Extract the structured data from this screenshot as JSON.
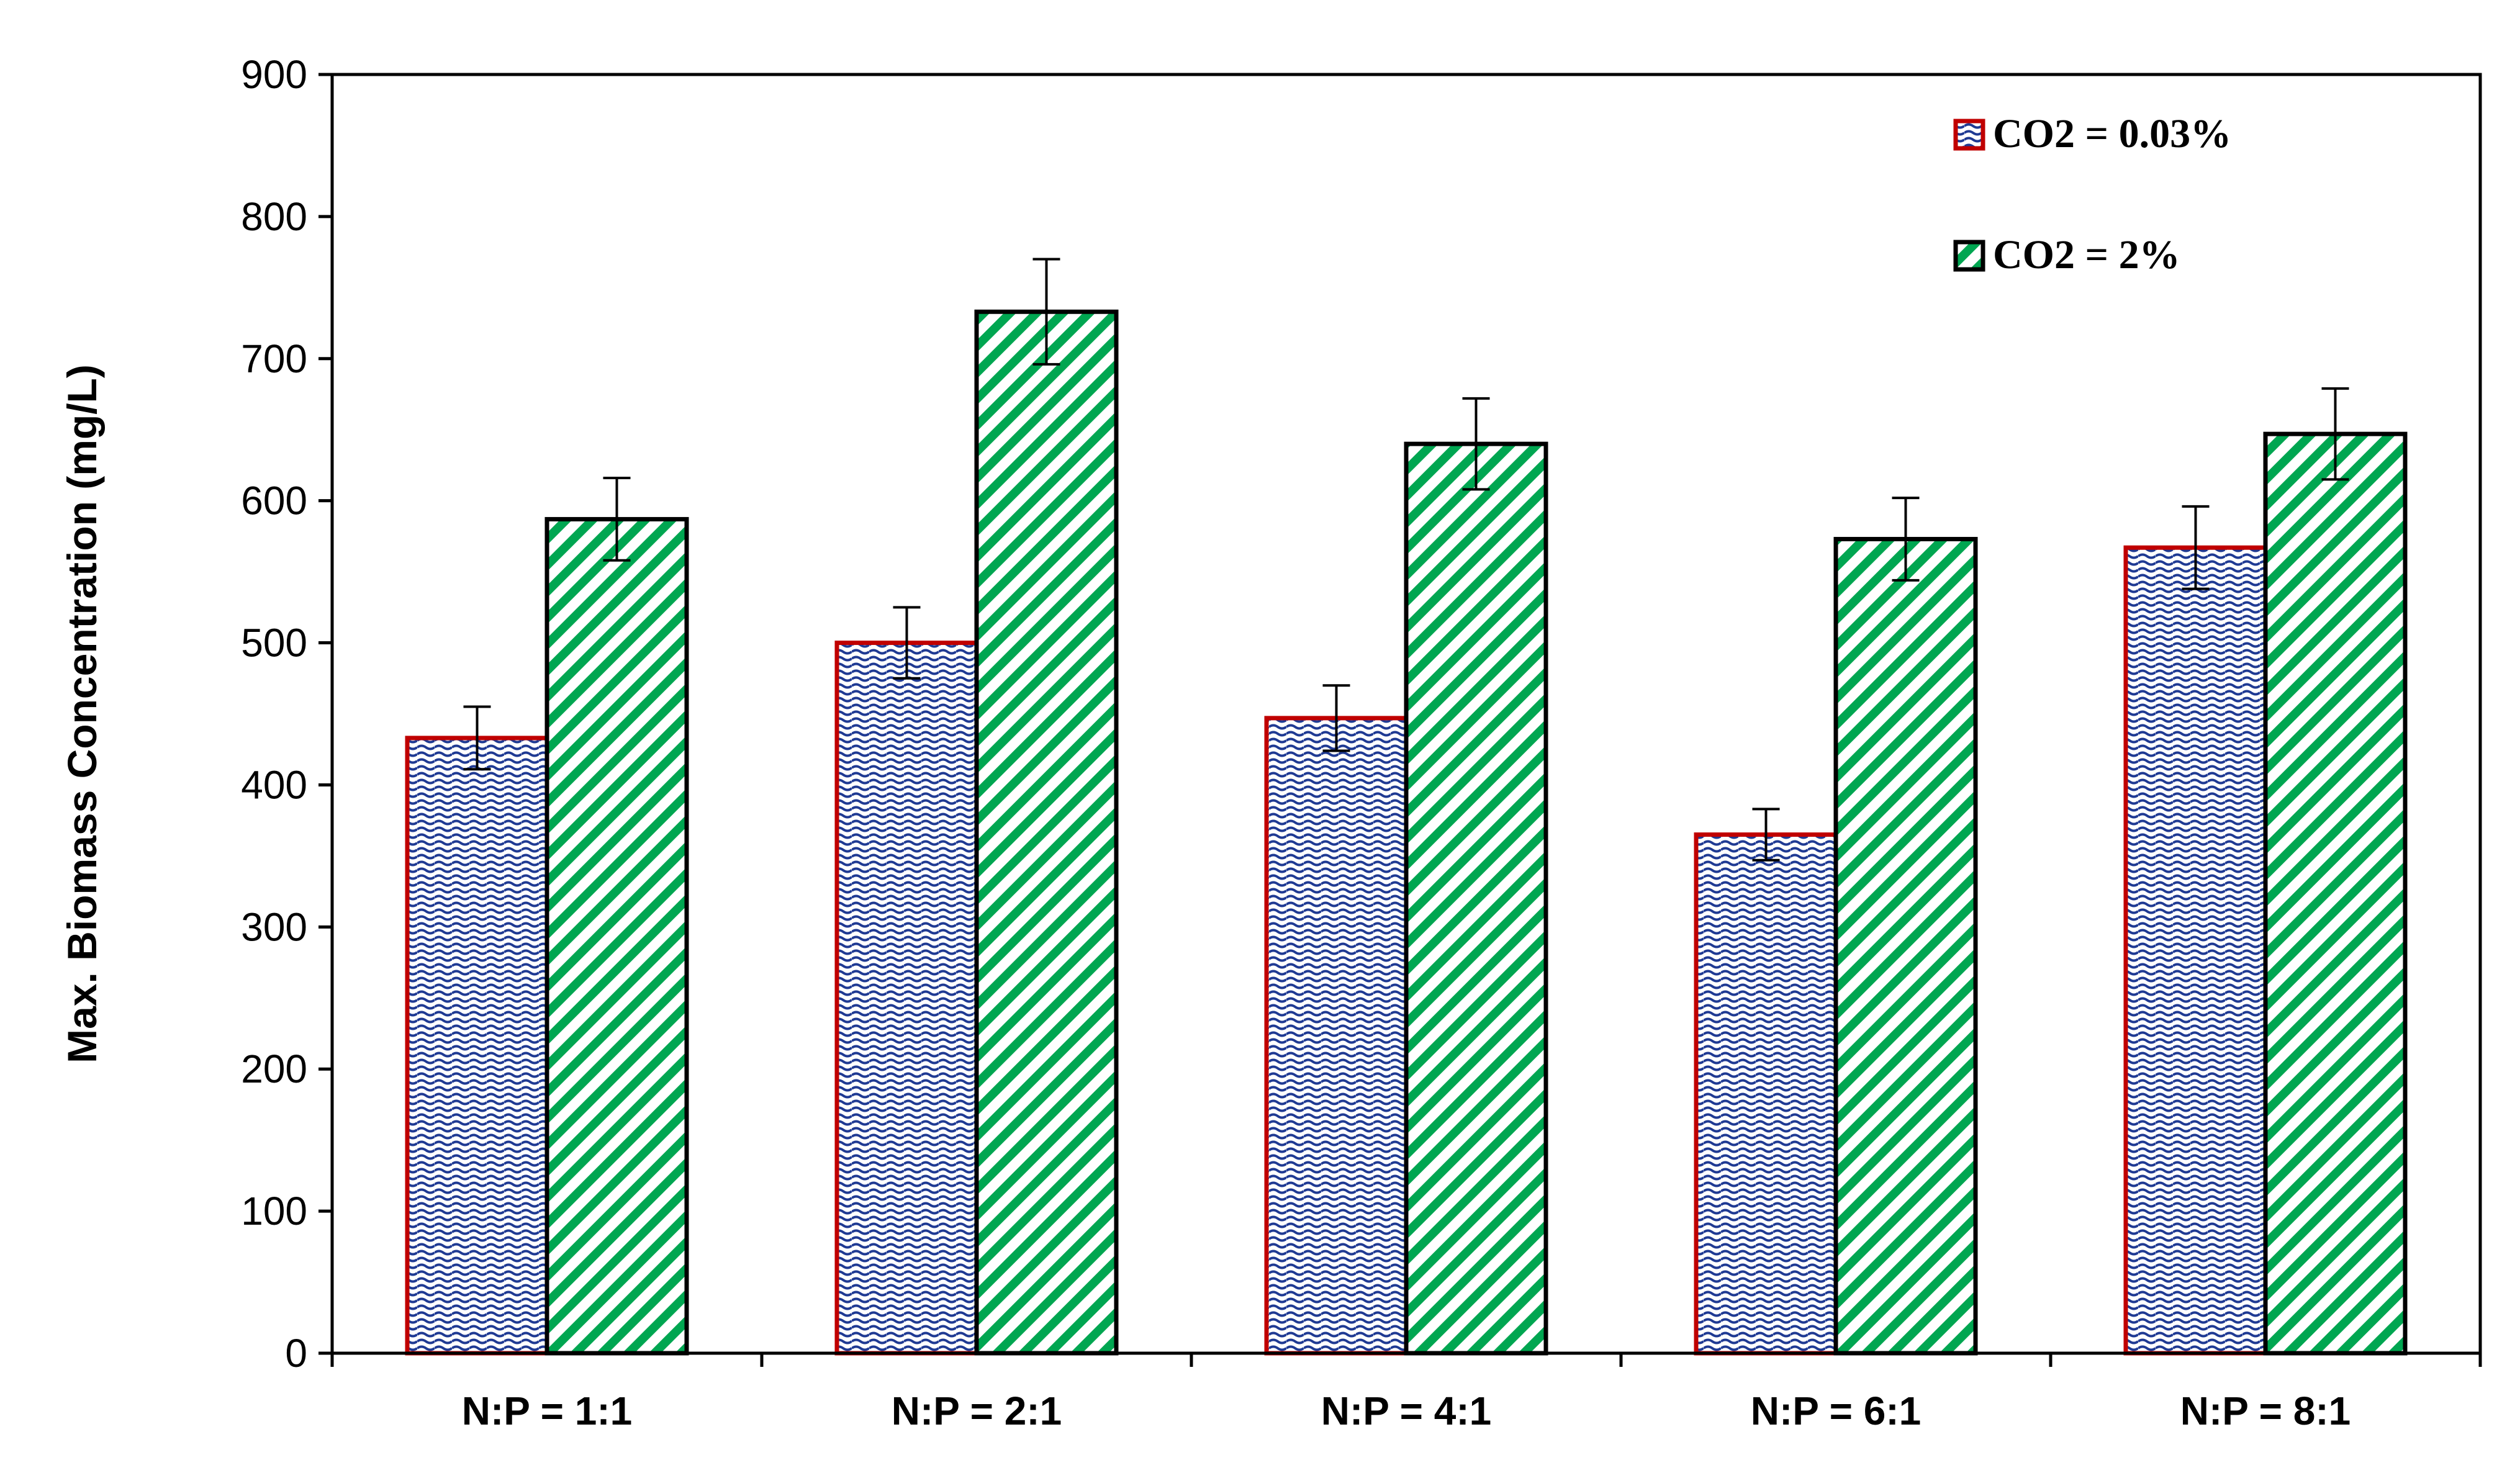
{
  "chart_data": {
    "type": "bar",
    "title": "",
    "xlabel": "",
    "ylabel": "Max. Biomass Concentration (mg/L)",
    "ylim": [
      0,
      900
    ],
    "yticks": [
      0,
      100,
      200,
      300,
      400,
      500,
      600,
      700,
      800,
      900
    ],
    "categories": [
      "N:P = 1:1",
      "N:P = 2:1",
      "N:P = 4:1",
      "N:P = 6:1",
      "N:P = 8:1"
    ],
    "series": [
      {
        "name": "CO2 = 0.03%",
        "values": [
          433,
          500,
          447,
          365,
          567
        ],
        "errors": [
          22,
          25,
          23,
          18,
          29
        ],
        "border_color": "#c00000",
        "fill_color": "#1f3a93"
      },
      {
        "name": "CO2 = 2%",
        "values": [
          587,
          733,
          640,
          573,
          647
        ],
        "errors": [
          29,
          37,
          32,
          29,
          32
        ],
        "border_color": "#000000",
        "fill_color": "#00a651"
      }
    ],
    "legend_position": "top-right",
    "grid": false
  }
}
